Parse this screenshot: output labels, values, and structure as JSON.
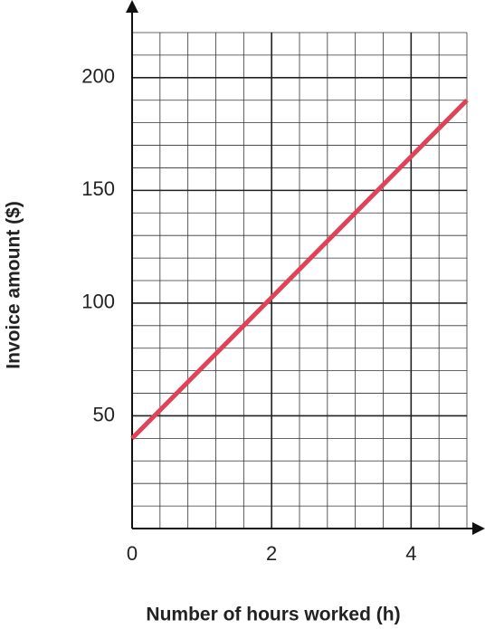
{
  "chart_data": {
    "type": "line",
    "x_label": "Number of hours worked (h)",
    "y_label": "Invoice amount ($)",
    "x": [
      0,
      4.8
    ],
    "series": [
      {
        "color": "#e04357",
        "values": [
          40,
          190
        ]
      }
    ],
    "xlim": [
      0,
      4.8
    ],
    "ylim": [
      0,
      220
    ],
    "xticks": [
      0,
      2,
      4
    ],
    "yticks": [
      50,
      100,
      150,
      200
    ],
    "grid": true
  }
}
